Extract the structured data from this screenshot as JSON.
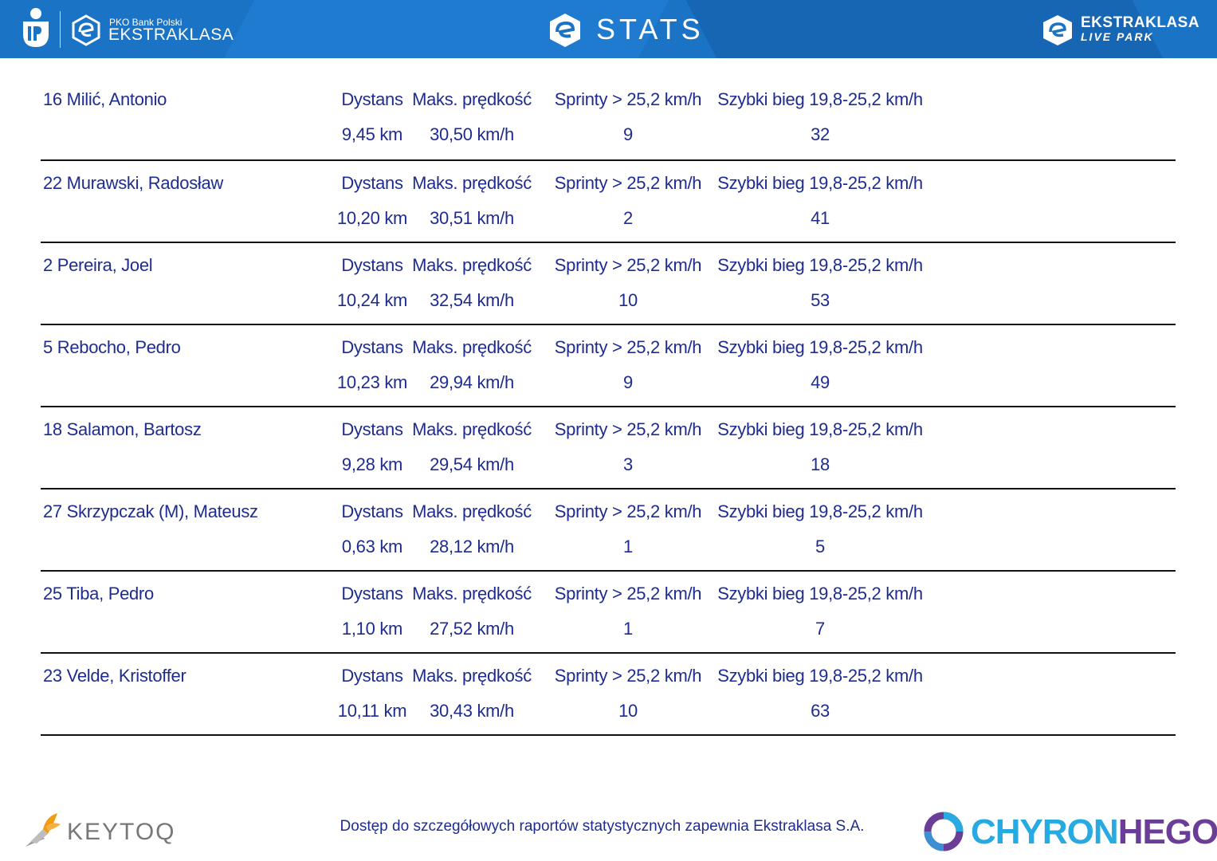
{
  "header": {
    "left_logo_small": "PKO Bank Polski",
    "left_logo_main": "EKSTRAKLASA",
    "title": "STATS",
    "right_logo_line1": "EKSTRAKLASA",
    "right_logo_line2": "LIVE PARK"
  },
  "labels": {
    "distance": "Dystans",
    "max_speed": "Maks. prędkość",
    "sprints": "Sprinty > 25,2 km/h",
    "fast_run": "Szybki bieg 19,8-25,2 km/h"
  },
  "players": [
    {
      "name": "16  Milić, Antonio",
      "distance": "9,45 km",
      "max_speed": "30,50 km/h",
      "sprints": "9",
      "fast_run": "32"
    },
    {
      "name": "22  Murawski, Radosław",
      "distance": "10,20 km",
      "max_speed": "30,51 km/h",
      "sprints": "2",
      "fast_run": "41"
    },
    {
      "name": "2  Pereira, Joel",
      "distance": "10,24 km",
      "max_speed": "32,54 km/h",
      "sprints": "10",
      "fast_run": "53"
    },
    {
      "name": "5  Rebocho, Pedro",
      "distance": "10,23 km",
      "max_speed": "29,94 km/h",
      "sprints": "9",
      "fast_run": "49"
    },
    {
      "name": "18  Salamon, Bartosz",
      "distance": "9,28 km",
      "max_speed": "29,54 km/h",
      "sprints": "3",
      "fast_run": "18"
    },
    {
      "name": "27  Skrzypczak (M), Mateusz",
      "distance": "0,63 km",
      "max_speed": "28,12 km/h",
      "sprints": "1",
      "fast_run": "5"
    },
    {
      "name": "25  Tiba, Pedro",
      "distance": "1,10 km",
      "max_speed": "27,52 km/h",
      "sprints": "1",
      "fast_run": "7"
    },
    {
      "name": "23  Velde, Kristoffer",
      "distance": "10,11 km",
      "max_speed": "30,43 km/h",
      "sprints": "10",
      "fast_run": "63"
    }
  ],
  "footer": {
    "keytoq_text": "KEYTOQ",
    "note": "Dostęp do szczegółowych raportów statystycznych zapewnia Ekstraklasa S.A.",
    "chyron_part1": "CHYRON",
    "chyron_part2": "HEGO"
  }
}
